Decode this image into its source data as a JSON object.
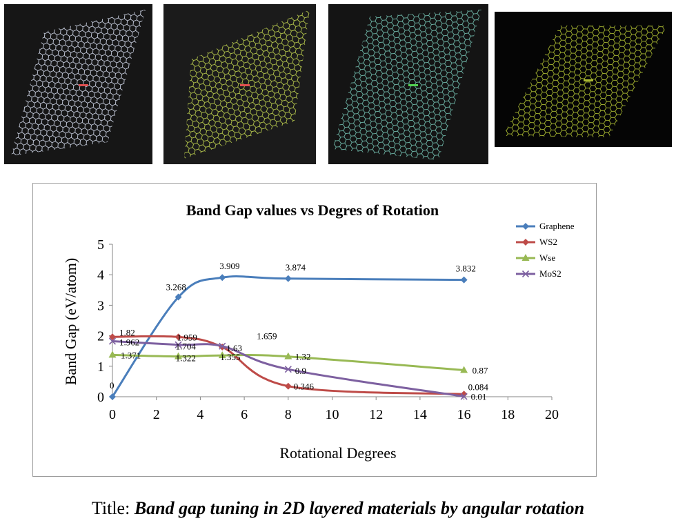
{
  "photos": [
    {
      "name": "graphene-lattice-photo",
      "background": "#161616",
      "lattice": "#c9cfe0",
      "accent": "#e05050"
    },
    {
      "name": "ws2-lattice-photo",
      "background": "#1b1b1b",
      "lattice": "#b7c94e",
      "accent": "#e05050"
    },
    {
      "name": "wse-lattice-photo",
      "background": "#141414",
      "lattice": "#6fb7a8",
      "accent": "#52d152"
    },
    {
      "name": "mos2-lattice-photo",
      "background": "#050505",
      "lattice": "#a9b832",
      "accent": "#a9b832"
    }
  ],
  "chart_data": {
    "type": "line",
    "title": "Band Gap values vs Degres of Rotation",
    "xlabel": "Rotational Degrees",
    "ylabel": "Band Gap (eV/atom)",
    "xlim": [
      0,
      20
    ],
    "ylim": [
      0,
      5
    ],
    "xticks": [
      0,
      2,
      4,
      6,
      8,
      10,
      12,
      14,
      16,
      18,
      20
    ],
    "yticks": [
      0,
      1,
      2,
      3,
      4,
      5
    ],
    "grid": false,
    "legend_position": "top-right",
    "series": [
      {
        "name": "Graphene",
        "color": "#4a7ebb",
        "marker": "diamond",
        "x": [
          0,
          3,
          5,
          8,
          16
        ],
        "y": [
          0,
          3.268,
          3.909,
          3.874,
          3.832
        ],
        "labels": [
          "0",
          "3.268",
          "3.909",
          "3.874",
          "3.832"
        ]
      },
      {
        "name": "WS2",
        "color": "#be4b48",
        "marker": "diamond",
        "x": [
          0,
          3,
          5,
          8,
          16
        ],
        "y": [
          1.962,
          1.959,
          1.63,
          0.346,
          0.084
        ],
        "labels": [
          "1.962",
          "1.959",
          "1.63",
          "0.346",
          "0.084"
        ]
      },
      {
        "name": "Wse",
        "color": "#98b954",
        "marker": "triangle",
        "x": [
          0,
          3,
          5,
          8,
          16
        ],
        "y": [
          1.371,
          1.322,
          1.355,
          1.32,
          0.87
        ],
        "labels": [
          "1.371",
          "1.322",
          "1.355",
          "1.32",
          "0.87"
        ]
      },
      {
        "name": "MoS2",
        "color": "#7d60a0",
        "marker": "x",
        "x": [
          0,
          3,
          5,
          8,
          16
        ],
        "y": [
          1.82,
          1.704,
          1.659,
          0.9,
          0.01
        ],
        "labels": [
          "1.82",
          "1.704",
          "1.659",
          "0.9",
          "0.01"
        ]
      }
    ]
  },
  "caption": {
    "lead": "Title: ",
    "body": "Band gap tuning in 2D layered materials by angular rotation"
  }
}
